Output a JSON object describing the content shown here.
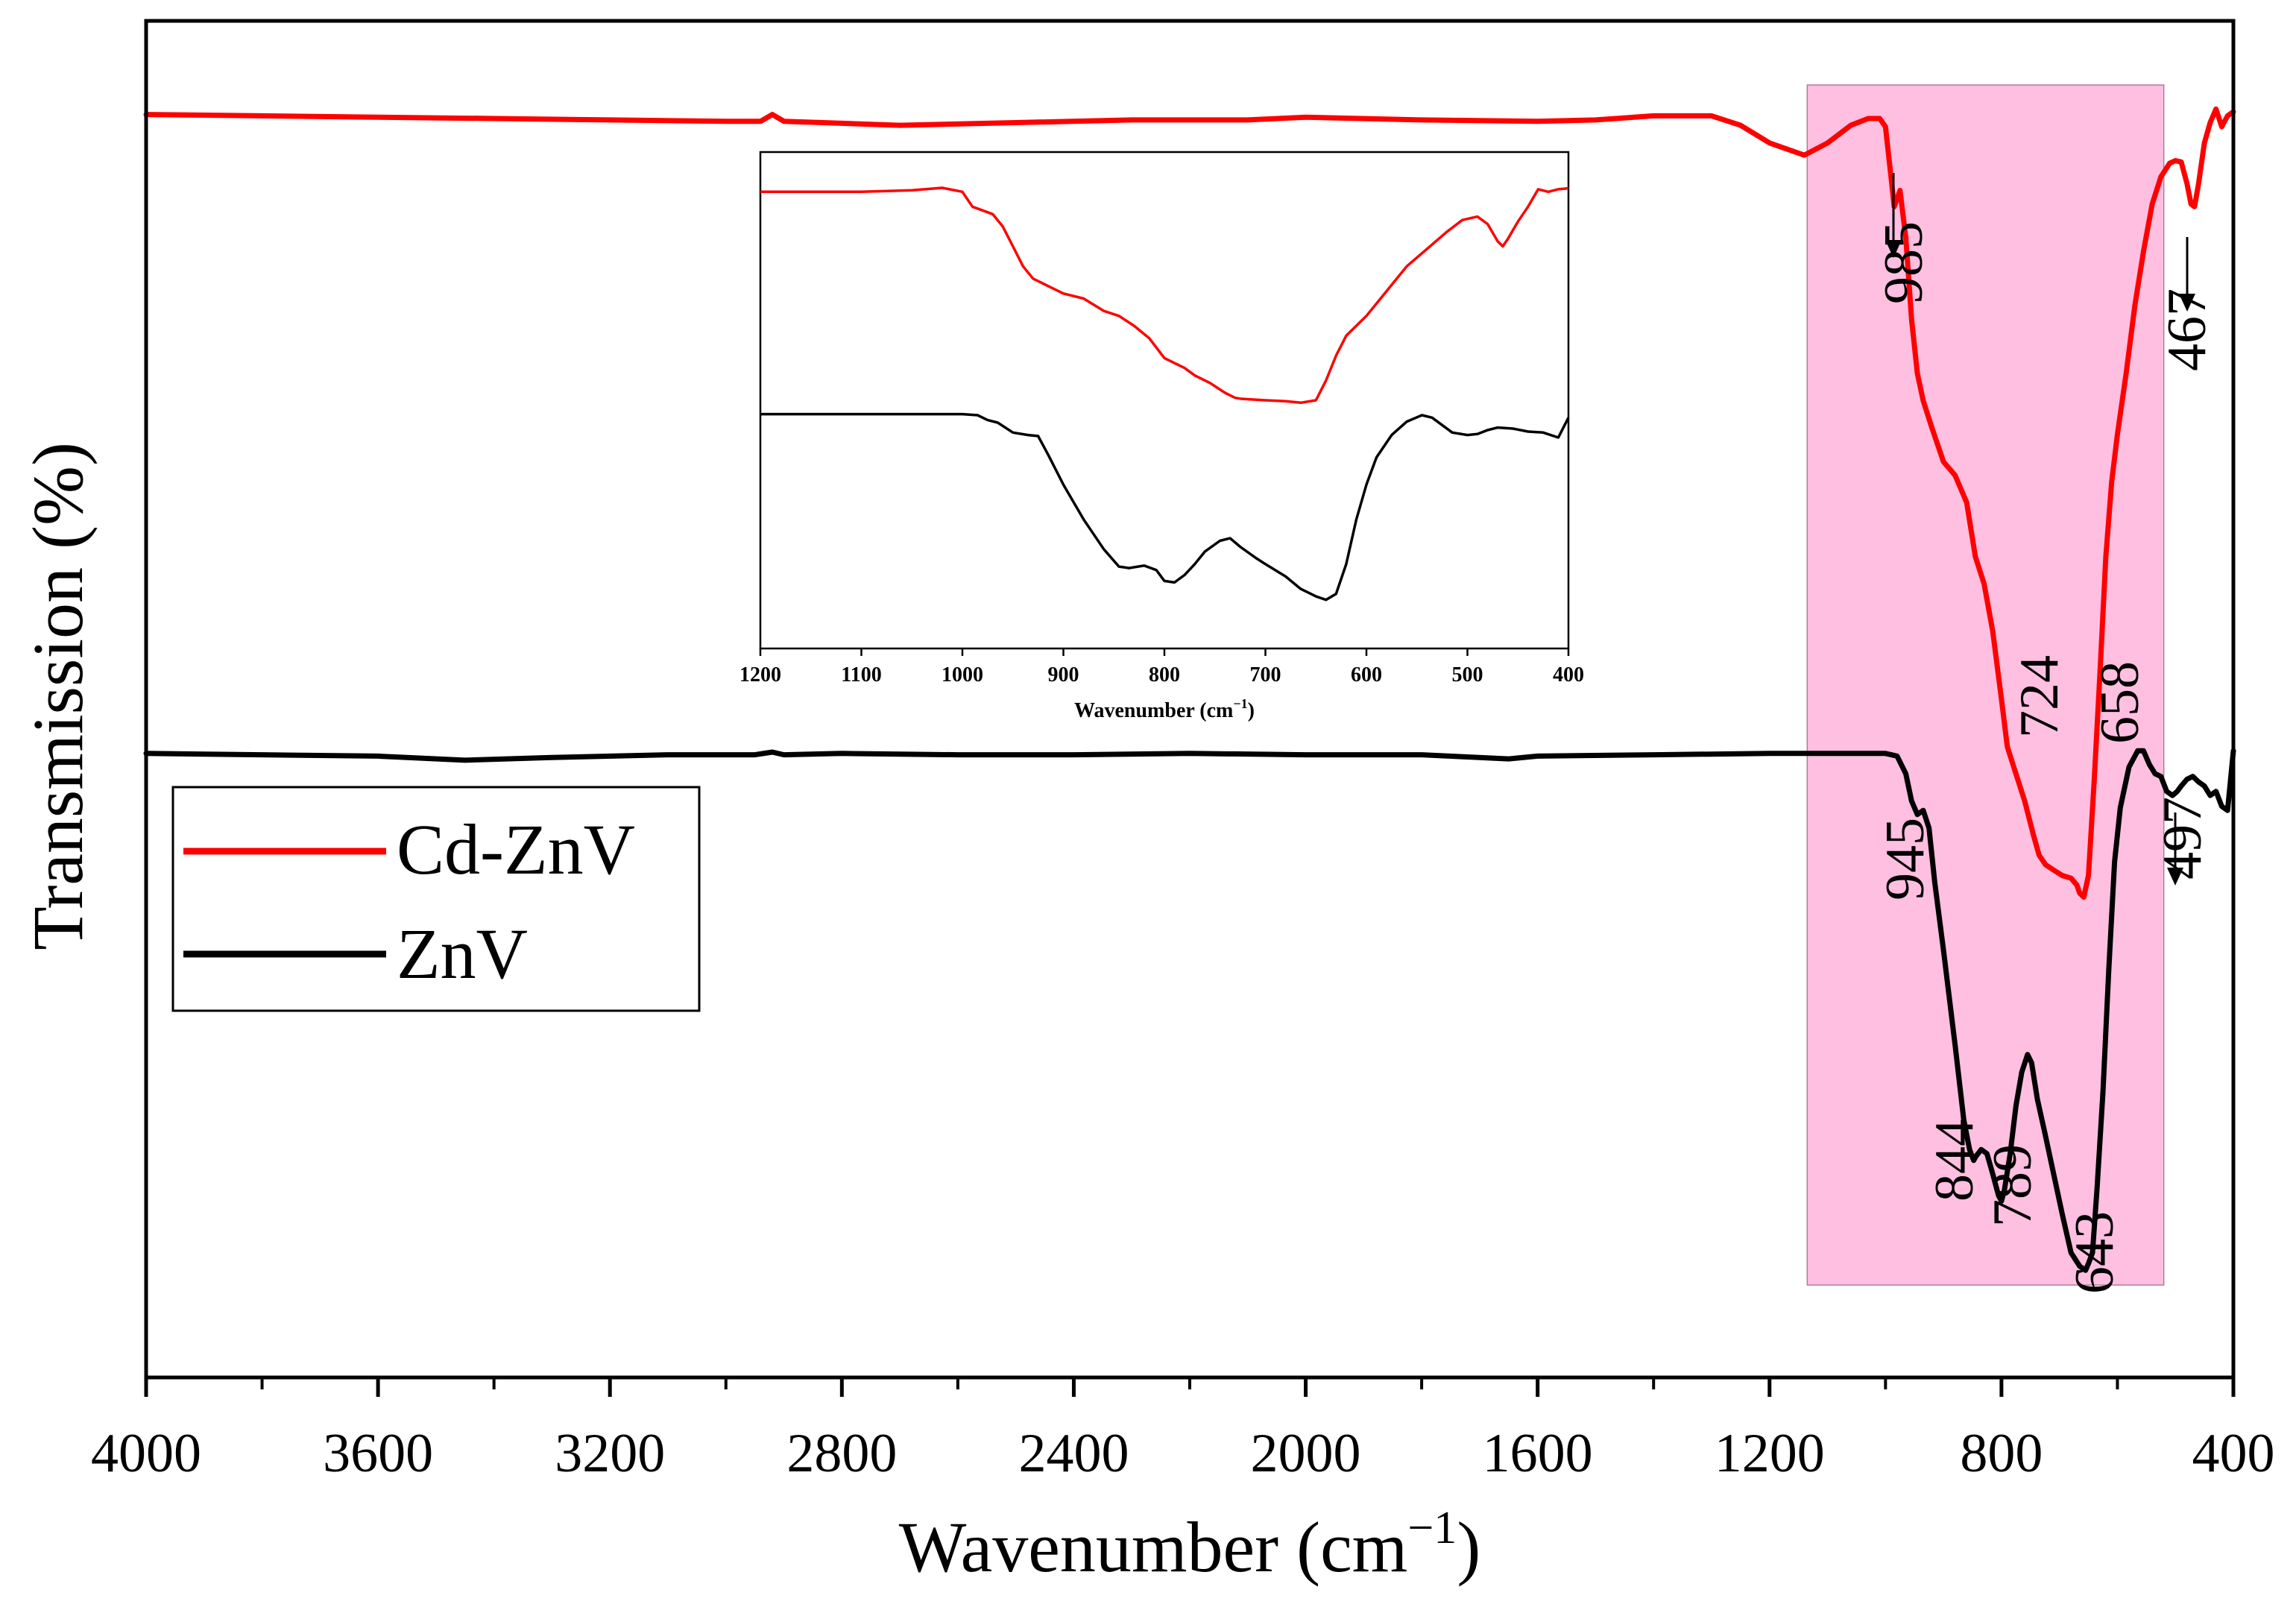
{
  "colors": {
    "cd_znv": "#ff0000",
    "znv": "#000000",
    "highlight": "#ffbfe0"
  },
  "chart_data": {
    "type": "line",
    "xlabel": "Wavenumber (cm",
    "xlabel_sup": "−1",
    "xlabel_close": ")",
    "ylabel": "Transmission (%)",
    "xlim": [
      4000,
      400
    ],
    "ylim": [
      0,
      100
    ],
    "x_ticks": [
      "4000",
      "3600",
      "3200",
      "2800",
      "2400",
      "2000",
      "1600",
      "1200",
      "800",
      "400"
    ],
    "highlight_range": [
      1135,
      520
    ],
    "legend": [
      {
        "name": "Cd-ZnV",
        "color": "#ff0000"
      },
      {
        "name": "ZnV",
        "color": "#000000"
      }
    ],
    "series": [
      {
        "name": "Cd-ZnV",
        "color": "#ff0000",
        "points": [
          [
            4000,
            93.1
          ],
          [
            3800,
            93.0
          ],
          [
            3600,
            92.9
          ],
          [
            3400,
            92.8
          ],
          [
            3200,
            92.7
          ],
          [
            3000,
            92.6
          ],
          [
            2940,
            92.6
          ],
          [
            2920,
            93.1
          ],
          [
            2900,
            92.6
          ],
          [
            2700,
            92.3
          ],
          [
            2500,
            92.5
          ],
          [
            2300,
            92.7
          ],
          [
            2100,
            92.7
          ],
          [
            2000,
            92.9
          ],
          [
            1800,
            92.7
          ],
          [
            1600,
            92.6
          ],
          [
            1500,
            92.7
          ],
          [
            1400,
            93.0
          ],
          [
            1300,
            93.0
          ],
          [
            1250,
            92.3
          ],
          [
            1200,
            91.0
          ],
          [
            1140,
            90.1
          ],
          [
            1100,
            91.0
          ],
          [
            1060,
            92.3
          ],
          [
            1030,
            92.8
          ],
          [
            1010,
            92.8
          ],
          [
            1000,
            92.2
          ],
          [
            990,
            88.3
          ],
          [
            985,
            86.3
          ],
          [
            975,
            87.5
          ],
          [
            965,
            84.0
          ],
          [
            955,
            78.0
          ],
          [
            945,
            74.0
          ],
          [
            935,
            72.0
          ],
          [
            920,
            70.0
          ],
          [
            900,
            67.5
          ],
          [
            880,
            66.5
          ],
          [
            860,
            64.5
          ],
          [
            845,
            60.5
          ],
          [
            830,
            58.5
          ],
          [
            815,
            55.0
          ],
          [
            800,
            50.0
          ],
          [
            790,
            46.5
          ],
          [
            775,
            44.5
          ],
          [
            760,
            42.5
          ],
          [
            745,
            40.0
          ],
          [
            735,
            38.5
          ],
          [
            724,
            37.8
          ],
          [
            710,
            37.4
          ],
          [
            695,
            37.0
          ],
          [
            680,
            36.8
          ],
          [
            670,
            36.3
          ],
          [
            665,
            35.7
          ],
          [
            658,
            35.4
          ],
          [
            650,
            37.0
          ],
          [
            640,
            44.0
          ],
          [
            630,
            52.0
          ],
          [
            620,
            60.5
          ],
          [
            610,
            66.0
          ],
          [
            600,
            69.5
          ],
          [
            585,
            74.0
          ],
          [
            570,
            79.0
          ],
          [
            555,
            83.0
          ],
          [
            540,
            86.5
          ],
          [
            525,
            88.5
          ],
          [
            510,
            89.5
          ],
          [
            500,
            89.7
          ],
          [
            490,
            89.6
          ],
          [
            480,
            88.0
          ],
          [
            473,
            86.5
          ],
          [
            467,
            86.3
          ],
          [
            460,
            88.0
          ],
          [
            450,
            91.0
          ],
          [
            440,
            92.5
          ],
          [
            430,
            93.5
          ],
          [
            420,
            92.2
          ],
          [
            410,
            93.0
          ],
          [
            400,
            93.3
          ]
        ]
      },
      {
        "name": "ZnV",
        "color": "#000000",
        "points": [
          [
            4000,
            46.0
          ],
          [
            3800,
            45.9
          ],
          [
            3600,
            45.8
          ],
          [
            3450,
            45.5
          ],
          [
            3300,
            45.7
          ],
          [
            3100,
            45.9
          ],
          [
            2950,
            45.9
          ],
          [
            2920,
            46.1
          ],
          [
            2900,
            45.9
          ],
          [
            2800,
            46.0
          ],
          [
            2600,
            45.9
          ],
          [
            2400,
            45.9
          ],
          [
            2200,
            46.0
          ],
          [
            2000,
            45.9
          ],
          [
            1800,
            45.9
          ],
          [
            1650,
            45.6
          ],
          [
            1600,
            45.8
          ],
          [
            1400,
            45.9
          ],
          [
            1200,
            46.0
          ],
          [
            1000,
            46.0
          ],
          [
            980,
            45.8
          ],
          [
            965,
            44.5
          ],
          [
            955,
            42.5
          ],
          [
            945,
            41.5
          ],
          [
            935,
            41.8
          ],
          [
            925,
            40.5
          ],
          [
            915,
            36.5
          ],
          [
            900,
            31.5
          ],
          [
            880,
            24.5
          ],
          [
            865,
            19.0
          ],
          [
            855,
            16.8
          ],
          [
            848,
            16.0
          ],
          [
            844,
            16.3
          ],
          [
            835,
            16.8
          ],
          [
            825,
            16.5
          ],
          [
            815,
            15.0
          ],
          [
            805,
            13.4
          ],
          [
            800,
            13.0
          ],
          [
            795,
            13.8
          ],
          [
            785,
            16.5
          ],
          [
            775,
            20.0
          ],
          [
            765,
            22.5
          ],
          [
            755,
            23.8
          ],
          [
            748,
            23.2
          ],
          [
            738,
            20.5
          ],
          [
            725,
            18.0
          ],
          [
            710,
            15.0
          ],
          [
            695,
            12.0
          ],
          [
            680,
            9.2
          ],
          [
            665,
            8.2
          ],
          [
            655,
            7.9
          ],
          [
            650,
            8.4
          ],
          [
            643,
            9.2
          ],
          [
            635,
            14.0
          ],
          [
            625,
            21.0
          ],
          [
            615,
            30.0
          ],
          [
            605,
            38.0
          ],
          [
            595,
            42.0
          ],
          [
            580,
            45.0
          ],
          [
            565,
            46.2
          ],
          [
            555,
            46.2
          ],
          [
            545,
            45.2
          ],
          [
            535,
            44.5
          ],
          [
            525,
            44.3
          ],
          [
            515,
            43.2
          ],
          [
            505,
            42.9
          ],
          [
            497,
            43.2
          ],
          [
            490,
            43.6
          ],
          [
            480,
            44.1
          ],
          [
            470,
            44.3
          ],
          [
            460,
            43.9
          ],
          [
            450,
            43.6
          ],
          [
            440,
            42.9
          ],
          [
            430,
            43.2
          ],
          [
            420,
            42.1
          ],
          [
            410,
            41.8
          ],
          [
            400,
            46.2
          ]
        ]
      }
    ],
    "annotations": [
      {
        "label": "985",
        "x": 985,
        "series": "Cd-ZnV",
        "arrow": true
      },
      {
        "label": "467",
        "x": 467,
        "series": "Cd-ZnV",
        "arrow": true
      },
      {
        "label": "724",
        "x": 724,
        "series": "Cd-ZnV",
        "arrow": false
      },
      {
        "label": "658",
        "x": 658,
        "series": "Cd-ZnV",
        "arrow": false
      },
      {
        "label": "945",
        "x": 945,
        "series": "ZnV",
        "arrow": false
      },
      {
        "label": "497",
        "x": 497,
        "series": "ZnV",
        "arrow": true
      },
      {
        "label": "844",
        "x": 844,
        "series": "ZnV",
        "arrow": false
      },
      {
        "label": "789",
        "x": 789,
        "series": "ZnV",
        "arrow": false
      },
      {
        "label": "643",
        "x": 643,
        "series": "ZnV",
        "arrow": false
      }
    ],
    "inset": {
      "type": "line",
      "xlabel": "Wavenumber (cm",
      "xlabel_sup": "−1",
      "xlabel_close": ")",
      "xlim": [
        1200,
        400
      ],
      "ylim": [
        0,
        100
      ],
      "x_ticks": [
        "1200",
        "1100",
        "1000",
        "900",
        "800",
        "700",
        "600",
        "500",
        "400"
      ],
      "series": [
        {
          "name": "Cd-ZnV",
          "color": "#ff0000",
          "points": [
            [
              1200,
              92.0
            ],
            [
              1150,
              92.0
            ],
            [
              1100,
              92.0
            ],
            [
              1050,
              92.3
            ],
            [
              1020,
              92.8
            ],
            [
              1000,
              92.0
            ],
            [
              990,
              89.0
            ],
            [
              970,
              87.5
            ],
            [
              960,
              85.0
            ],
            [
              950,
              81.0
            ],
            [
              940,
              77.0
            ],
            [
              930,
              74.5
            ],
            [
              920,
              73.5
            ],
            [
              900,
              71.5
            ],
            [
              880,
              70.5
            ],
            [
              860,
              68.0
            ],
            [
              845,
              67.0
            ],
            [
              830,
              65.0
            ],
            [
              815,
              62.5
            ],
            [
              800,
              58.5
            ],
            [
              790,
              57.5
            ],
            [
              780,
              56.5
            ],
            [
              770,
              55.0
            ],
            [
              755,
              53.5
            ],
            [
              740,
              51.5
            ],
            [
              730,
              50.5
            ],
            [
              724,
              50.3
            ],
            [
              700,
              50.0
            ],
            [
              680,
              49.8
            ],
            [
              665,
              49.5
            ],
            [
              650,
              50.0
            ],
            [
              640,
              54.0
            ],
            [
              630,
              59.0
            ],
            [
              620,
              63.0
            ],
            [
              600,
              67.0
            ],
            [
              580,
              72.0
            ],
            [
              560,
              77.0
            ],
            [
              540,
              80.5
            ],
            [
              520,
              84.0
            ],
            [
              505,
              86.3
            ],
            [
              490,
              87.0
            ],
            [
              480,
              85.5
            ],
            [
              470,
              82.0
            ],
            [
              465,
              81.0
            ],
            [
              460,
              82.5
            ],
            [
              450,
              86.0
            ],
            [
              440,
              89.0
            ],
            [
              430,
              92.5
            ],
            [
              420,
              92.0
            ],
            [
              410,
              92.5
            ],
            [
              400,
              92.7
            ]
          ]
        },
        {
          "name": "ZnV",
          "color": "#000000",
          "points": [
            [
              1200,
              47.2
            ],
            [
              1100,
              47.2
            ],
            [
              1000,
              47.2
            ],
            [
              985,
              47.0
            ],
            [
              975,
              46.0
            ],
            [
              965,
              45.5
            ],
            [
              950,
              43.5
            ],
            [
              935,
              43.0
            ],
            [
              925,
              42.8
            ],
            [
              915,
              39.0
            ],
            [
              900,
              33.0
            ],
            [
              880,
              26.0
            ],
            [
              860,
              20.0
            ],
            [
              845,
              16.5
            ],
            [
              835,
              16.2
            ],
            [
              820,
              16.7
            ],
            [
              808,
              15.8
            ],
            [
              800,
              13.6
            ],
            [
              790,
              13.3
            ],
            [
              780,
              14.8
            ],
            [
              770,
              17.0
            ],
            [
              760,
              19.5
            ],
            [
              745,
              21.7
            ],
            [
              735,
              22.2
            ],
            [
              725,
              20.5
            ],
            [
              710,
              18.3
            ],
            [
              700,
              17.0
            ],
            [
              680,
              14.5
            ],
            [
              665,
              12.0
            ],
            [
              650,
              10.5
            ],
            [
              640,
              9.8
            ],
            [
              630,
              11.0
            ],
            [
              620,
              17.0
            ],
            [
              610,
              26.0
            ],
            [
              600,
              33.0
            ],
            [
              590,
              38.5
            ],
            [
              575,
              43.0
            ],
            [
              560,
              45.7
            ],
            [
              545,
              47.0
            ],
            [
              535,
              46.5
            ],
            [
              525,
              45.0
            ],
            [
              515,
              43.5
            ],
            [
              500,
              43.0
            ],
            [
              490,
              43.2
            ],
            [
              480,
              44.0
            ],
            [
              470,
              44.5
            ],
            [
              455,
              44.3
            ],
            [
              440,
              43.7
            ],
            [
              425,
              43.5
            ],
            [
              410,
              42.5
            ],
            [
              400,
              46.5
            ]
          ]
        }
      ]
    }
  }
}
